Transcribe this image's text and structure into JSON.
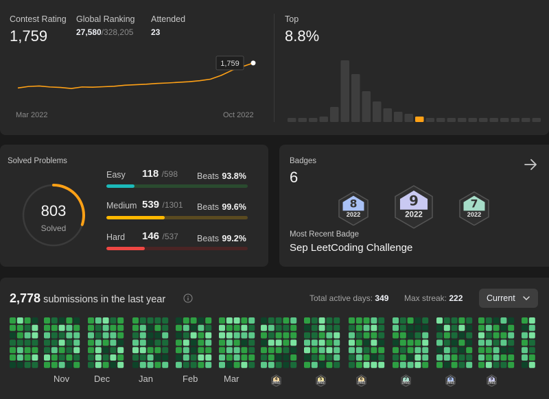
{
  "rating": {
    "contest_rating_label": "Contest Rating",
    "contest_rating_value": "1,759",
    "global_ranking_label": "Global Ranking",
    "global_ranking_value": "27,580",
    "global_ranking_total": "/328,205",
    "attended_label": "Attended",
    "attended_value": "23",
    "tooltip_value": "1,759",
    "x_start_label": "Mar 2022",
    "x_end_label": "Oct 2022",
    "top_label": "Top",
    "top_value": "8.8%",
    "accent_color": "#ffa116"
  },
  "chart_data": [
    {
      "type": "line",
      "x": [
        "Mar 2022",
        "",
        "",
        "",
        "",
        "",
        "",
        "",
        "",
        "",
        "",
        "",
        "",
        "",
        "",
        "",
        "",
        "",
        "",
        "",
        "",
        "",
        "Oct 2022"
      ],
      "values": [
        1560,
        1572,
        1576,
        1568,
        1564,
        1556,
        1568,
        1566,
        1570,
        1574,
        1582,
        1586,
        1590,
        1596,
        1600,
        1605,
        1610,
        1618,
        1630,
        1660,
        1700,
        1730,
        1759
      ],
      "xlabel": "",
      "ylabel": ""
    },
    {
      "type": "bar",
      "categories": [
        "1",
        "2",
        "3",
        "4",
        "5",
        "6",
        "7",
        "8",
        "9",
        "10",
        "11",
        "12",
        "13",
        "14",
        "15",
        "16",
        "17",
        "18",
        "19",
        "20",
        "21",
        "22",
        "23",
        "24"
      ],
      "values": [
        6,
        6,
        6,
        8,
        22,
        90,
        70,
        45,
        30,
        20,
        15,
        12,
        8,
        6,
        6,
        6,
        6,
        6,
        6,
        6,
        6,
        6,
        6,
        6
      ],
      "highlight_index": 12,
      "xlabel": "",
      "ylabel": ""
    }
  ],
  "solved": {
    "title": "Solved Problems",
    "total": "803",
    "total_label": "Solved",
    "easy": {
      "name": "Easy",
      "count": "118",
      "total": "/598",
      "beats_label": "Beats",
      "beats": "93.8%",
      "fraction": 0.197,
      "color": "#2cbb5d",
      "bar_color": "#1cbaba",
      "track": "#2a4a2f"
    },
    "medium": {
      "name": "Medium",
      "count": "539",
      "total": "/1301",
      "beats_label": "Beats",
      "beats": "99.6%",
      "fraction": 0.414,
      "color": "#ffc01e",
      "bar_color": "#ffb800",
      "track": "#5a4a20"
    },
    "hard": {
      "name": "Hard",
      "count": "146",
      "total": "/537",
      "beats_label": "Beats",
      "beats": "99.2%",
      "fraction": 0.272,
      "color": "#ef4743",
      "bar_color": "#ef4743",
      "track": "#4a2424"
    },
    "ring_fraction": 0.3
  },
  "badges": {
    "title": "Badges",
    "count": "6",
    "items": [
      {
        "number": "8",
        "year": "2022",
        "color": "#a9c1f5"
      },
      {
        "number": "9",
        "year": "2022",
        "color": "#c9c9f2"
      },
      {
        "number": "7",
        "year": "2022",
        "color": "#a6dcc8"
      }
    ],
    "recent_label": "Most Recent Badge",
    "recent_name": "Sep LeetCoding Challenge"
  },
  "submissions": {
    "count": "2,778",
    "suffix": " submissions in the last year",
    "active_days_label": "Total active days:",
    "active_days_value": "349",
    "max_streak_label": "Max streak:",
    "max_streak_value": "222",
    "dropdown_value": "Current",
    "months": [
      "Nov",
      "Dec",
      "Jan",
      "Feb",
      "Mar"
    ],
    "month_badges": [
      {
        "number": "4",
        "year": "2022",
        "color": "#f2d49b"
      },
      {
        "number": "5",
        "year": "2022",
        "color": "#f2e39b"
      },
      {
        "number": "6",
        "year": "2022",
        "color": "#f2d89b"
      },
      {
        "number": "7",
        "year": "2022",
        "color": "#a6dcc8"
      },
      {
        "number": "8",
        "year": "2022",
        "color": "#a9c1f5"
      },
      {
        "number": "9",
        "year": "2022",
        "color": "#c9c9f2"
      }
    ]
  }
}
